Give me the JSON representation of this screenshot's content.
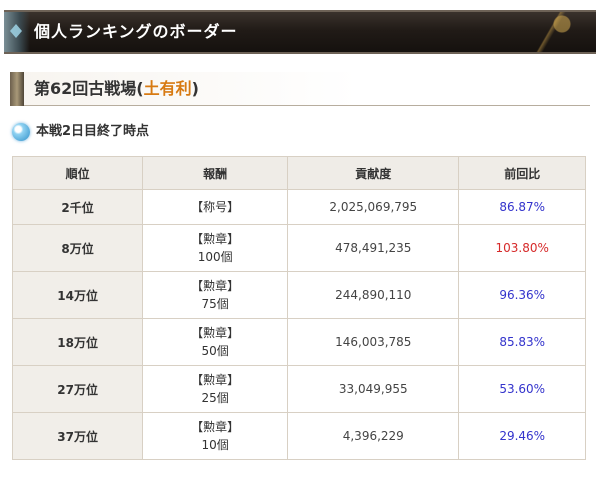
{
  "header": {
    "title": "個人ランキングのボーダー"
  },
  "event": {
    "prefix": "第62回古戦場(",
    "element": "土有利",
    "suffix": ")"
  },
  "caption": {
    "text": "本戦2日目終了時点"
  },
  "table": {
    "headers": [
      "順位",
      "報酬",
      "貢献度",
      "前回比"
    ],
    "rows": [
      {
        "rank": "2千位",
        "reward_type": "【称号】",
        "reward_qty": "",
        "score": "2,025,069,795",
        "ratio": "86.87%",
        "ratio_status": "up"
      },
      {
        "rank": "8万位",
        "reward_type": "【勲章】",
        "reward_qty": "100個",
        "score": "478,491,235",
        "ratio": "103.80%",
        "ratio_status": "down"
      },
      {
        "rank": "14万位",
        "reward_type": "【勲章】",
        "reward_qty": "75個",
        "score": "244,890,110",
        "ratio": "96.36%",
        "ratio_status": "up"
      },
      {
        "rank": "18万位",
        "reward_type": "【勲章】",
        "reward_qty": "50個",
        "score": "146,003,785",
        "ratio": "85.83%",
        "ratio_status": "up"
      },
      {
        "rank": "27万位",
        "reward_type": "【勲章】",
        "reward_qty": "25個",
        "score": "33,049,955",
        "ratio": "53.60%",
        "ratio_status": "up"
      },
      {
        "rank": "37万位",
        "reward_type": "【勲章】",
        "reward_qty": "10個",
        "score": "4,396,229",
        "ratio": "29.46%",
        "ratio_status": "up"
      }
    ]
  },
  "colors": {
    "accent": "#d77a12",
    "ratio_blue": "#3333cc",
    "ratio_red": "#d62a2a",
    "header_bg": "#efece7"
  },
  "icons": {
    "caption_icon": "orb-icon"
  }
}
